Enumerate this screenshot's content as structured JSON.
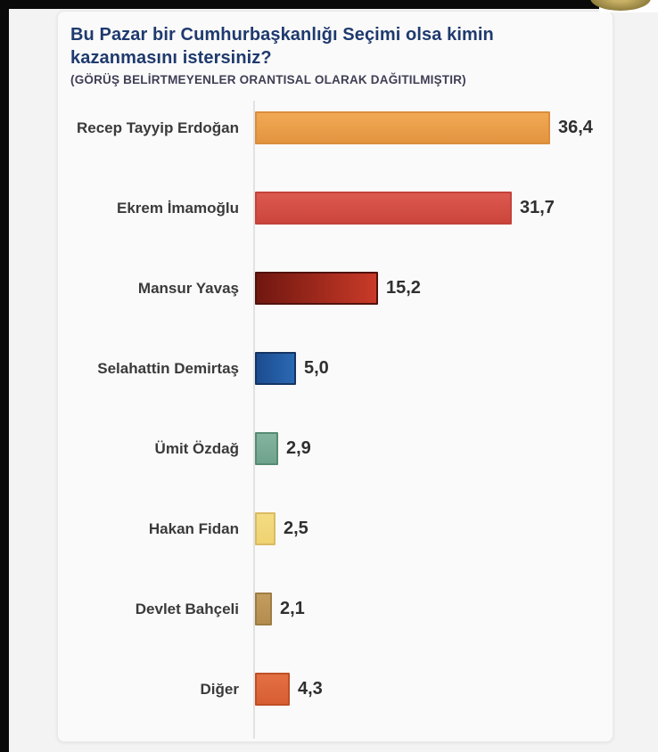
{
  "header": {
    "title": "Bu Pazar bir Cumhurbaşkanlığı Seçimi olsa kimin kazanmasını istersiniz?",
    "subtitle": "(GÖRÜŞ BELİRTMEYENLER ORANTISAL OLARAK DAĞITILMIŞTIR)"
  },
  "chart_data": {
    "type": "bar",
    "orientation": "horizontal",
    "title": "Bu Pazar bir Cumhurbaşkanlığı Seçimi olsa kimin kazanmasını istersiniz?",
    "subtitle": "(GÖRÜŞ BELİRTMEYENLER ORANTISAL OLARAK DAĞITILMIŞTIR)",
    "xlim": [
      0,
      40
    ],
    "grid": false,
    "legend": false,
    "value_format": "comma-decimal",
    "categories": [
      "Recep Tayyip Erdoğan",
      "Ekrem İmamoğlu",
      "Mansur Yavaş",
      "Selahattin Demirtaş",
      "Ümit Özdağ",
      "Hakan Fidan",
      "Devlet Bahçeli",
      "Diğer"
    ],
    "values": [
      36.4,
      31.7,
      15.2,
      5.0,
      2.9,
      2.5,
      2.1,
      4.3
    ],
    "series": [
      {
        "label": "Recep Tayyip Erdoğan",
        "value": 36.4,
        "display": "36,4",
        "color_start": "#F1A954",
        "color_end": "#E39440",
        "border": "#DA8E3C",
        "grad_dir": "180deg"
      },
      {
        "label": "Ekrem İmamoğlu",
        "value": 31.7,
        "display": "31,7",
        "color_start": "#DC5A50",
        "color_end": "#CC453C",
        "border": "#C4423B",
        "grad_dir": "180deg"
      },
      {
        "label": "Mansur Yavaş",
        "value": 15.2,
        "display": "15,2",
        "color_start": "#701710",
        "color_end": "#C93A28",
        "border": "#50120D",
        "grad_dir": "90deg"
      },
      {
        "label": "Selahattin Demirtaş",
        "value": 5.0,
        "display": "5,0",
        "color_start": "#1C4C90",
        "color_end": "#2B69B3",
        "border": "#163463",
        "grad_dir": "90deg"
      },
      {
        "label": "Ümit Özdağ",
        "value": 2.9,
        "display": "2,9",
        "color_start": "#83B49F",
        "color_end": "#6FA28C",
        "border": "#578B74",
        "grad_dir": "180deg"
      },
      {
        "label": "Hakan Fidan",
        "value": 2.5,
        "display": "2,5",
        "color_start": "#F4DC83",
        "color_end": "#EFD271",
        "border": "#D9BB63",
        "grad_dir": "180deg"
      },
      {
        "label": "Devlet Bahçeli",
        "value": 2.1,
        "display": "2,1",
        "color_start": "#C39D5F",
        "color_end": "#B38D4F",
        "border": "#9E7D43",
        "grad_dir": "180deg"
      },
      {
        "label": "Diğer",
        "value": 4.3,
        "display": "4,3",
        "color_start": "#E37043",
        "color_end": "#D75E32",
        "border": "#BF4F27",
        "grad_dir": "180deg"
      }
    ]
  },
  "decor": {
    "top_bar_color": "#0A0A0A",
    "left_bar_color": "#0A0A0A",
    "gold_badge": "#8A7939",
    "card_bg": "#FBFAFA",
    "page_bg": "#F4F3F3",
    "axis_color": "#E3E2E2",
    "title_color": "#1E3A6E",
    "subtitle_color": "#3F3F55",
    "label_color": "#3A3A3A"
  }
}
